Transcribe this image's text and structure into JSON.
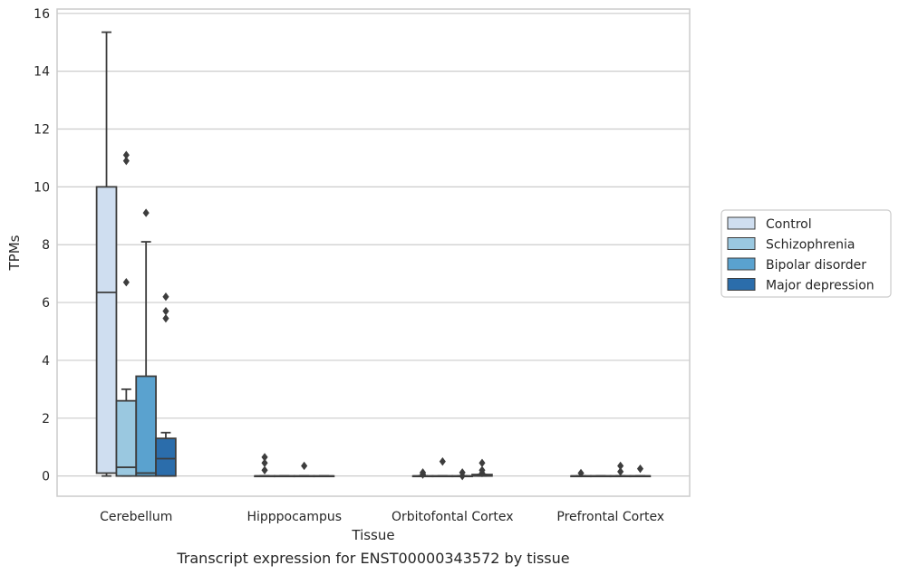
{
  "chart_data": {
    "type": "box",
    "title": "Transcript expression for ENST00000343572 by tissue",
    "xlabel": "Tissue",
    "ylabel": "TPMs",
    "ylim": [
      -0.7,
      16.15
    ],
    "yticks": [
      0,
      2,
      4,
      6,
      8,
      10,
      12,
      14,
      16
    ],
    "grid": "horizontal",
    "legend_position": "right",
    "categories": [
      "Cerebellum",
      "Hipppocampus",
      "Orbitofontal Cortex",
      "Prefrontal Cortex"
    ],
    "series": [
      {
        "name": "Control",
        "color": "#cfdef0",
        "boxes": [
          {
            "category": "Cerebellum",
            "q1": 0.1,
            "median": 6.35,
            "q3": 10.0,
            "whisker_low": 0.0,
            "whisker_high": 15.35,
            "outliers": []
          },
          {
            "category": "Hipppocampus",
            "q1": 0.0,
            "median": 0.0,
            "q3": 0.0,
            "whisker_low": 0.0,
            "whisker_high": 0.0,
            "outliers": [
              0.2,
              0.45,
              0.65
            ]
          },
          {
            "category": "Orbitofontal Cortex",
            "q1": 0.0,
            "median": 0.0,
            "q3": 0.0,
            "whisker_low": 0.0,
            "whisker_high": 0.0,
            "outliers": [
              0.05,
              0.12
            ]
          },
          {
            "category": "Prefrontal Cortex",
            "q1": 0.0,
            "median": 0.0,
            "q3": 0.0,
            "whisker_low": 0.0,
            "whisker_high": 0.0,
            "outliers": [
              0.1
            ]
          }
        ]
      },
      {
        "name": "Schizophrenia",
        "color": "#9ac8e0",
        "boxes": [
          {
            "category": "Cerebellum",
            "q1": 0.0,
            "median": 0.3,
            "q3": 2.6,
            "whisker_low": 0.0,
            "whisker_high": 3.0,
            "outliers": [
              6.7,
              10.9,
              11.1
            ]
          },
          {
            "category": "Hipppocampus",
            "q1": 0.0,
            "median": 0.0,
            "q3": 0.0,
            "whisker_low": 0.0,
            "whisker_high": 0.0,
            "outliers": []
          },
          {
            "category": "Orbitofontal Cortex",
            "q1": 0.0,
            "median": 0.0,
            "q3": 0.0,
            "whisker_low": 0.0,
            "whisker_high": 0.0,
            "outliers": [
              0.5
            ]
          },
          {
            "category": "Prefrontal Cortex",
            "q1": 0.0,
            "median": 0.0,
            "q3": 0.0,
            "whisker_low": 0.0,
            "whisker_high": 0.0,
            "outliers": []
          }
        ]
      },
      {
        "name": "Bipolar disorder",
        "color": "#5aa2cf",
        "boxes": [
          {
            "category": "Cerebellum",
            "q1": 0.0,
            "median": 0.1,
            "q3": 3.45,
            "whisker_low": 0.0,
            "whisker_high": 8.1,
            "outliers": [
              9.1
            ]
          },
          {
            "category": "Hipppocampus",
            "q1": 0.0,
            "median": 0.0,
            "q3": 0.0,
            "whisker_low": 0.0,
            "whisker_high": 0.0,
            "outliers": [
              0.35
            ]
          },
          {
            "category": "Orbitofontal Cortex",
            "q1": 0.0,
            "median": 0.0,
            "q3": 0.0,
            "whisker_low": 0.0,
            "whisker_high": 0.0,
            "outliers": [
              0.0,
              0.12
            ]
          },
          {
            "category": "Prefrontal Cortex",
            "q1": 0.0,
            "median": 0.0,
            "q3": 0.0,
            "whisker_low": 0.0,
            "whisker_high": 0.0,
            "outliers": [
              0.15,
              0.35
            ]
          }
        ]
      },
      {
        "name": "Major depression",
        "color": "#2b6dab",
        "boxes": [
          {
            "category": "Cerebellum",
            "q1": 0.0,
            "median": 0.6,
            "q3": 1.3,
            "whisker_low": 0.0,
            "whisker_high": 1.5,
            "outliers": [
              5.45,
              5.7,
              6.2
            ]
          },
          {
            "category": "Hipppocampus",
            "q1": 0.0,
            "median": 0.0,
            "q3": 0.0,
            "whisker_low": 0.0,
            "whisker_high": 0.0,
            "outliers": []
          },
          {
            "category": "Orbitofontal Cortex",
            "q1": 0.0,
            "median": 0.0,
            "q3": 0.05,
            "whisker_low": 0.0,
            "whisker_high": 0.05,
            "outliers": [
              0.1,
              0.2,
              0.45
            ]
          },
          {
            "category": "Prefrontal Cortex",
            "q1": 0.0,
            "median": 0.0,
            "q3": 0.0,
            "whisker_low": 0.0,
            "whisker_high": 0.0,
            "outliers": [
              0.25
            ]
          }
        ]
      }
    ]
  }
}
